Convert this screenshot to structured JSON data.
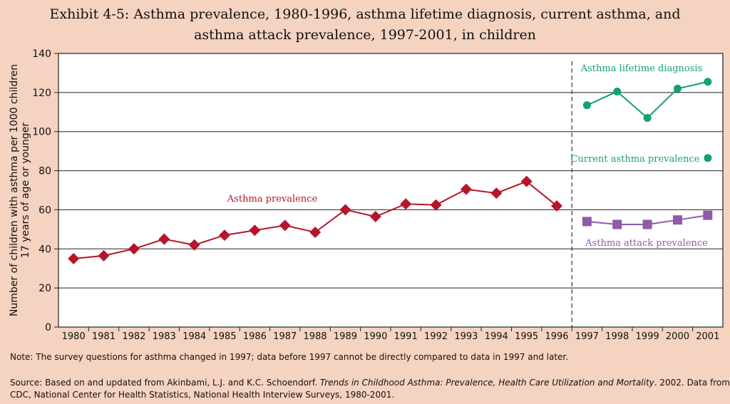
{
  "title_line1": "Exhibit 4-5: Asthma prevalence, 1980-1996, asthma lifetime diagnosis, current asthma, and",
  "title_line2": "asthma attack prevalence, 1997-2001, in children",
  "note": "Note:  The survey questions for asthma changed in 1997; data before 1997 cannot be directly compared to data in 1997 and later.",
  "source": {
    "prefix": "Source:  Based on and updated from Akinbami, L.J. and K.C. Schoendorf.  ",
    "italic": "Trends in Childhood Asthma: Prevalence, Health Care Utilization and Mortality",
    "suffix": ". 2002. Data from",
    "line2": "CDC, National Center for Health Statistics, National Health Interview Surveys, 1980-2001."
  },
  "chart_data": {
    "type": "line",
    "ylabel_line1": "Number of children with asthma per 1000 children",
    "ylabel_line2": "17 years of age or younger",
    "xlabel": "",
    "ylim": [
      0,
      140
    ],
    "yticks": [
      0,
      20,
      40,
      60,
      80,
      100,
      120,
      140
    ],
    "grid": true,
    "categories": [
      "1980",
      "1981",
      "1982",
      "1983",
      "1984",
      "1985",
      "1986",
      "1987",
      "1988",
      "1989",
      "1990",
      "1991",
      "1992",
      "1993",
      "1994",
      "1995",
      "1996",
      "1997",
      "1998",
      "1999",
      "2000",
      "2001"
    ],
    "divider_after": "1996",
    "series": [
      {
        "name": "Asthma prevalence",
        "color": "#b5152b",
        "marker": "diamond",
        "connected": true,
        "x": [
          "1980",
          "1981",
          "1982",
          "1983",
          "1984",
          "1985",
          "1986",
          "1987",
          "1988",
          "1989",
          "1990",
          "1991",
          "1992",
          "1993",
          "1994",
          "1995",
          "1996"
        ],
        "values": [
          35,
          36.5,
          40,
          45,
          42,
          47,
          49.5,
          52,
          48.5,
          60,
          56.5,
          63,
          62.5,
          70.5,
          68.5,
          74.5,
          62
        ]
      },
      {
        "name": "Asthma lifetime diagnosis",
        "color": "#12a074",
        "marker": "circle",
        "connected": true,
        "x": [
          "1997",
          "1998",
          "1999",
          "2000",
          "2001"
        ],
        "values": [
          113.5,
          120.5,
          107,
          122,
          125.5
        ]
      },
      {
        "name": "Current asthma prevalence",
        "color": "#12a074",
        "marker": "circle",
        "connected": false,
        "x": [
          "2001"
        ],
        "values": [
          86.5
        ]
      },
      {
        "name": "Asthma attack prevalence",
        "color": "#8e5aa9",
        "marker": "square",
        "connected": true,
        "x": [
          "1997",
          "1998",
          "1999",
          "2000",
          "2001"
        ],
        "values": [
          54,
          52.5,
          52.5,
          54.8,
          57.2
        ]
      }
    ]
  }
}
